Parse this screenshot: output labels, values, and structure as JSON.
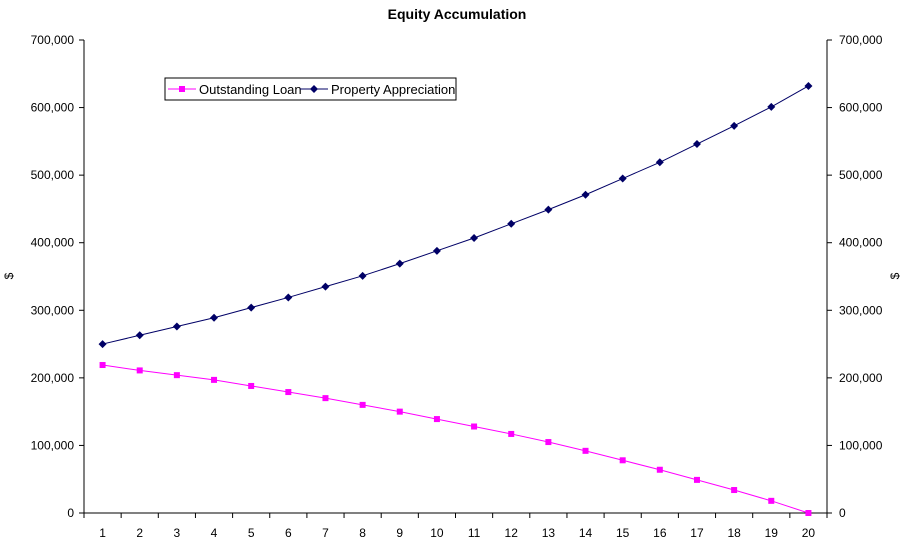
{
  "chart_data": {
    "type": "line",
    "title": "Equity Accumulation",
    "ylabel_left": "$",
    "ylabel_right": "$",
    "xlabel": "",
    "x": [
      1,
      2,
      3,
      4,
      5,
      6,
      7,
      8,
      9,
      10,
      11,
      12,
      13,
      14,
      15,
      16,
      17,
      18,
      19,
      20
    ],
    "ylim": [
      0,
      700000
    ],
    "y_ticks": [
      0,
      100000,
      200000,
      300000,
      400000,
      500000,
      600000,
      700000
    ],
    "y_tick_labels": [
      "0",
      "100,000",
      "200,000",
      "300,000",
      "400,000",
      "500,000",
      "600,000",
      "700,000"
    ],
    "grid": false,
    "legend_position": "top-left",
    "series": [
      {
        "name": "Outstanding Loan",
        "color": "#ff00ff",
        "marker": "square",
        "values": [
          219000,
          211000,
          204000,
          197000,
          188000,
          179000,
          170000,
          160000,
          150000,
          139000,
          128000,
          117000,
          105000,
          92000,
          78000,
          64000,
          49000,
          34000,
          18000,
          0
        ]
      },
      {
        "name": "Property Appreciation",
        "color": "#000066",
        "marker": "diamond",
        "values": [
          250000,
          263000,
          276000,
          289000,
          304000,
          319000,
          335000,
          351000,
          369000,
          388000,
          407000,
          428000,
          449000,
          471000,
          495000,
          519000,
          546000,
          573000,
          601000,
          632000
        ]
      }
    ]
  }
}
